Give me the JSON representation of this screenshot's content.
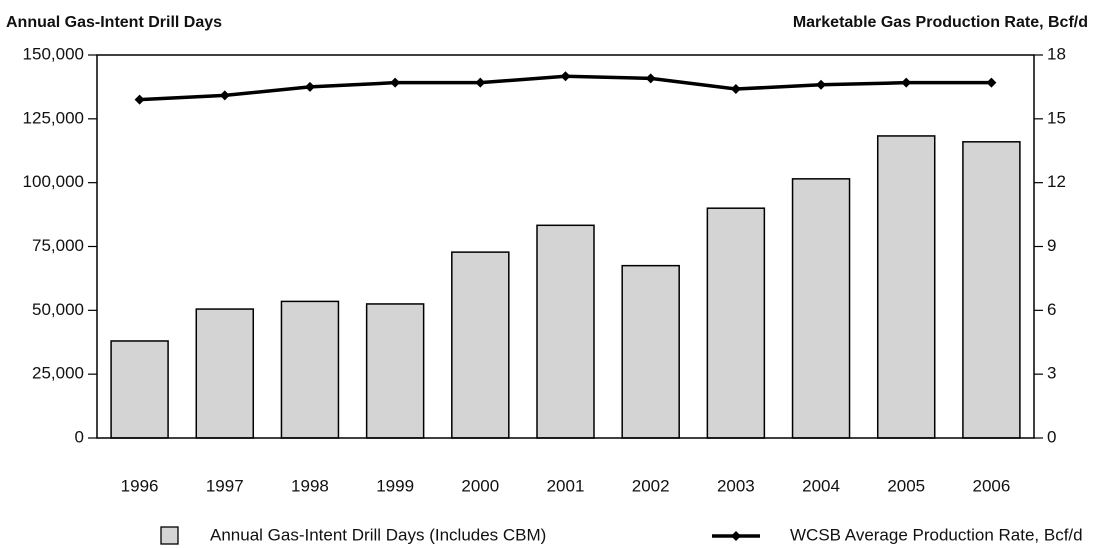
{
  "chart_data": {
    "type": "bar",
    "y_label": "Annual Gas-Intent Drill Days",
    "y2_label": "Marketable Gas Production Rate, Bcf/d",
    "categories": [
      "1996",
      "1997",
      "1998",
      "1999",
      "2000",
      "2001",
      "2002",
      "2003",
      "2004",
      "2005",
      "2006"
    ],
    "series": [
      {
        "name": "Annual Gas-Intent Drill Days (Includes CBM)",
        "type": "bar",
        "color": "#d4d4d4",
        "values": [
          38000,
          50500,
          53500,
          52500,
          72800,
          83300,
          67500,
          90000,
          101500,
          118300,
          116000
        ]
      },
      {
        "name": "WCSB Average Production Rate, Bcf/d",
        "type": "line",
        "axis": "y2",
        "color": "#000000",
        "values": [
          15.9,
          16.1,
          16.5,
          16.7,
          16.7,
          17.0,
          16.9,
          16.4,
          16.6,
          16.7,
          16.7
        ]
      }
    ],
    "ylim": [
      0,
      150000
    ],
    "yticks": [
      0,
      {
        "value": 25000,
        "label": "25,000"
      },
      {
        "value": 50000,
        "label": "50,000"
      },
      {
        "value": 75000,
        "label": "75,000"
      },
      {
        "value": 100000,
        "label": "100,000"
      },
      {
        "value": 125000,
        "label": "125,000"
      },
      {
        "value": 150000,
        "label": "150,000"
      }
    ],
    "y2lim": [
      0,
      18
    ],
    "y2ticks": [
      0,
      3,
      6,
      9,
      12,
      15,
      18
    ],
    "legend": "bottom"
  }
}
